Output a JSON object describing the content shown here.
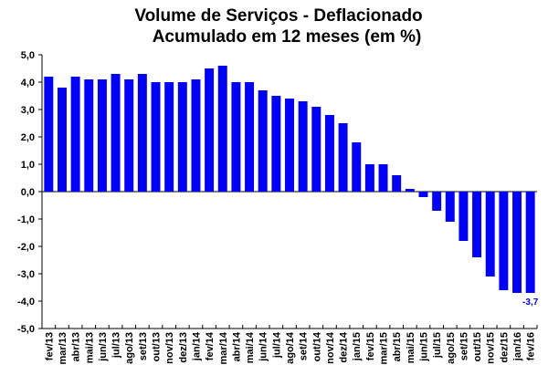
{
  "chart_data": {
    "type": "bar",
    "title": "Volume de Serviços - Deflacionado",
    "subtitle": "Acumulado em 12 meses (em %)",
    "categories": [
      "fev/13",
      "mar/13",
      "abr/13",
      "mai/13",
      "jun/13",
      "jul/13",
      "ago/13",
      "set/13",
      "out/13",
      "nov/13",
      "dez/13",
      "jan/14",
      "fev/14",
      "mar/14",
      "abr/14",
      "mai/14",
      "jun/14",
      "jul/14",
      "ago/14",
      "set/14",
      "out/14",
      "nov/14",
      "dez/14",
      "jan/15",
      "fev/15",
      "mar/15",
      "abr/15",
      "mai/15",
      "jun/15",
      "jul/15",
      "ago/15",
      "set/15",
      "out/15",
      "nov/15",
      "dez/15",
      "jan/16",
      "fev/16"
    ],
    "values": [
      4.2,
      3.8,
      4.2,
      4.1,
      4.1,
      4.3,
      4.1,
      4.3,
      4.0,
      4.0,
      4.0,
      4.1,
      4.5,
      4.6,
      4.0,
      4.0,
      3.7,
      3.5,
      3.4,
      3.3,
      3.1,
      2.8,
      2.5,
      1.8,
      1.0,
      1.0,
      0.6,
      0.1,
      -0.2,
      -0.7,
      -1.1,
      -1.8,
      -2.4,
      -3.1,
      -3.6,
      -3.7,
      -3.7
    ],
    "yticks": [
      "5,0",
      "4,0",
      "3,0",
      "2,0",
      "1,0",
      "0,0",
      "-1,0",
      "-2,0",
      "-3,0",
      "-4,0",
      "-5,0"
    ],
    "ylim": [
      -5,
      5
    ],
    "bar_color": "#0000FF",
    "data_labels": [
      {
        "index": 36,
        "text": "-3,7"
      }
    ],
    "grid": false,
    "legend": false
  }
}
